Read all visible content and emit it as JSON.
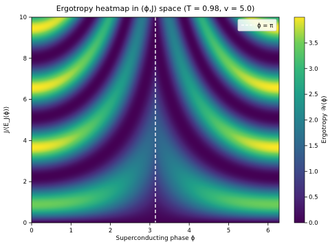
{
  "chart_data": {
    "type": "heatmap",
    "title": "Ergotropy heatmap in (ϕ,J) space (T = 0.98, v = 5.0)",
    "xlabel": "Superconducting phase ϕ",
    "ylabel": "J/⟨E_J(ϕ)⟩",
    "xlim": [
      0,
      6.2832
    ],
    "ylim": [
      0,
      10
    ],
    "x_ticks": [
      0,
      1,
      2,
      3,
      4,
      5,
      6
    ],
    "y_ticks": [
      0,
      2,
      4,
      6,
      8,
      10
    ],
    "colorbar": {
      "label": "Ergotropy 𝒲(ϕ)",
      "colormap": "viridis",
      "range": [
        0.0,
        4.0
      ],
      "ticks": [
        0.0,
        0.5,
        1.0,
        1.5,
        2.0,
        2.5,
        3.0,
        3.5
      ]
    },
    "reference_line": {
      "x": 3.1416,
      "style": "dashed",
      "color": "#ffffff",
      "label": "ϕ = π"
    },
    "legend": {
      "position": "top-right",
      "entries": [
        "ϕ = π"
      ]
    },
    "grid": false,
    "hot_spots": [
      {
        "phi": 0.85,
        "J": 9.3,
        "value": 3.8
      },
      {
        "phi": 1.7,
        "J": 6.3,
        "value": 2.3
      },
      {
        "phi": 3.0,
        "J": 3.9,
        "value": 1.9
      },
      {
        "phi": 6.05,
        "J": 9.0,
        "value": 3.8
      },
      {
        "phi": 5.9,
        "J": 6.3,
        "value": 3.6
      },
      {
        "phi": 5.9,
        "J": 3.8,
        "value": 3.6
      },
      {
        "phi": 5.9,
        "J": 1.6,
        "value": 3.7
      }
    ]
  }
}
